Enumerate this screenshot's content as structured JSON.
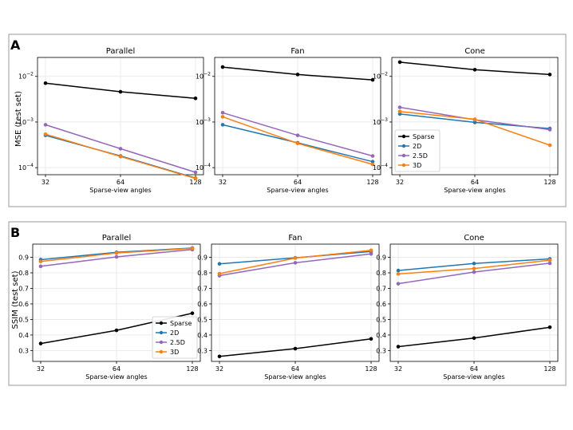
{
  "panels": [
    {
      "letter": "A",
      "ylabel": "MSE (test set)",
      "yscale": "log",
      "ylim": [
        7e-05,
        0.026
      ],
      "yticks": [
        {
          "value": 0.0001,
          "base": "10",
          "exp": "−4"
        },
        {
          "value": 0.001,
          "base": "10",
          "exp": "−3"
        },
        {
          "value": 0.01,
          "base": "10",
          "exp": "−2"
        }
      ]
    },
    {
      "letter": "B",
      "ylabel": "SSIM (test set)",
      "yscale": "linear",
      "ylim": [
        0.23,
        0.985
      ],
      "yticks": [
        {
          "value": 0.3,
          "label": "0.3"
        },
        {
          "value": 0.4,
          "label": "0.4"
        },
        {
          "value": 0.5,
          "label": "0.5"
        },
        {
          "value": 0.6,
          "label": "0.6"
        },
        {
          "value": 0.7,
          "label": "0.7"
        },
        {
          "value": 0.8,
          "label": "0.8"
        },
        {
          "value": 0.9,
          "label": "0.9"
        }
      ]
    }
  ],
  "xticks": [
    "32",
    "64",
    "128"
  ],
  "xlabel": "Sparse-view angles",
  "legend": [
    "Sparse",
    "2D",
    "2.5D",
    "3D"
  ],
  "colors": {
    "Sparse": "#000000",
    "2D": "#1f77b4",
    "2.5D": "#9467bd",
    "3D": "#ff7f0e"
  },
  "chart_data": [
    {
      "type": "line",
      "panel": "A",
      "title": "Parallel",
      "xlabel": "Sparse-view angles",
      "ylabel": "MSE (test set)",
      "yscale": "log",
      "x": [
        32,
        64,
        128
      ],
      "series": [
        {
          "name": "Sparse",
          "values": [
            0.0071,
            0.0046,
            0.0033
          ]
        },
        {
          "name": "2D",
          "values": [
            0.00051,
            0.00018,
            5.9e-05
          ]
        },
        {
          "name": "2.5D",
          "values": [
            0.00087,
            0.00026,
            7.9e-05
          ]
        },
        {
          "name": "3D",
          "values": [
            0.00054,
            0.000175,
            5.8e-05
          ]
        }
      ]
    },
    {
      "type": "line",
      "panel": "A",
      "title": "Fan",
      "xlabel": "Sparse-view angles",
      "yscale": "log",
      "x": [
        32,
        64,
        128
      ],
      "series": [
        {
          "name": "Sparse",
          "values": [
            0.016,
            0.011,
            0.0084
          ]
        },
        {
          "name": "2D",
          "values": [
            0.00087,
            0.00035,
            0.000135
          ]
        },
        {
          "name": "2.5D",
          "values": [
            0.0016,
            0.00051,
            0.00018
          ]
        },
        {
          "name": "3D",
          "values": [
            0.0013,
            0.00034,
            0.000118
          ]
        }
      ]
    },
    {
      "type": "line",
      "panel": "A",
      "title": "Cone",
      "xlabel": "Sparse-view angles",
      "yscale": "log",
      "x": [
        32,
        64,
        128
      ],
      "series": [
        {
          "name": "Sparse",
          "values": [
            0.0205,
            0.014,
            0.011
          ]
        },
        {
          "name": "2D",
          "values": [
            0.0015,
            0.00098,
            0.00072
          ]
        },
        {
          "name": "2.5D",
          "values": [
            0.0021,
            0.00112,
            0.00068
          ]
        },
        {
          "name": "3D",
          "values": [
            0.0017,
            0.00115,
            0.00031
          ]
        }
      ]
    },
    {
      "type": "line",
      "panel": "B",
      "title": "Parallel",
      "xlabel": "Sparse-view angles",
      "ylabel": "SSIM (test set)",
      "x": [
        32,
        64,
        128
      ],
      "series": [
        {
          "name": "Sparse",
          "values": [
            0.345,
            0.43,
            0.54
          ]
        },
        {
          "name": "2D",
          "values": [
            0.885,
            0.932,
            0.96
          ]
        },
        {
          "name": "2.5D",
          "values": [
            0.842,
            0.903,
            0.95
          ]
        },
        {
          "name": "3D",
          "values": [
            0.873,
            0.928,
            0.958
          ]
        }
      ]
    },
    {
      "type": "line",
      "panel": "B",
      "title": "Fan",
      "xlabel": "Sparse-view angles",
      "x": [
        32,
        64,
        128
      ],
      "series": [
        {
          "name": "Sparse",
          "values": [
            0.262,
            0.312,
            0.375
          ]
        },
        {
          "name": "2D",
          "values": [
            0.858,
            0.897,
            0.937
          ]
        },
        {
          "name": "2.5D",
          "values": [
            0.782,
            0.865,
            0.922
          ]
        },
        {
          "name": "3D",
          "values": [
            0.795,
            0.895,
            0.945
          ]
        }
      ]
    },
    {
      "type": "line",
      "panel": "B",
      "title": "Cone",
      "xlabel": "Sparse-view angles",
      "x": [
        32,
        64,
        128
      ],
      "series": [
        {
          "name": "Sparse",
          "values": [
            0.325,
            0.38,
            0.45
          ]
        },
        {
          "name": "2D",
          "values": [
            0.815,
            0.86,
            0.89
          ]
        },
        {
          "name": "2.5D",
          "values": [
            0.73,
            0.805,
            0.862
          ]
        },
        {
          "name": "3D",
          "values": [
            0.793,
            0.828,
            0.882
          ]
        }
      ]
    }
  ]
}
